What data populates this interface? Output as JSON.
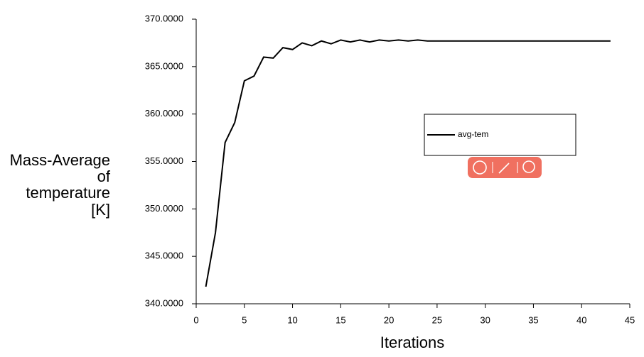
{
  "chart_data": {
    "type": "line",
    "xlabel": "Iterations",
    "ylabel": [
      "Mass-Average",
      "of",
      "temperature",
      "[K]"
    ],
    "x": [
      1,
      2,
      3,
      4,
      5,
      6,
      7,
      8,
      9,
      10,
      11,
      12,
      13,
      14,
      15,
      16,
      17,
      18,
      19,
      20,
      21,
      22,
      23,
      24,
      25,
      26,
      27,
      28,
      29,
      30,
      31,
      32,
      33,
      34,
      35,
      36,
      37,
      38,
      39,
      40,
      41,
      42,
      43
    ],
    "series": [
      {
        "name": "avg-tem",
        "color": "#000000",
        "values": [
          341.8,
          347.5,
          357.0,
          359.1,
          363.5,
          364.0,
          366.0,
          365.9,
          367.0,
          366.8,
          367.5,
          367.2,
          367.7,
          367.4,
          367.8,
          367.6,
          367.8,
          367.6,
          367.8,
          367.7,
          367.8,
          367.7,
          367.8,
          367.7,
          367.7,
          367.7,
          367.7,
          367.7,
          367.7,
          367.7,
          367.7,
          367.7,
          367.7,
          367.7,
          367.7,
          367.7,
          367.7,
          367.7,
          367.7,
          367.7,
          367.7,
          367.7,
          367.7
        ]
      }
    ],
    "xlim": [
      0,
      45
    ],
    "xticks": [
      0,
      5,
      10,
      15,
      20,
      25,
      30,
      35,
      40,
      45
    ],
    "ylim": [
      340,
      370
    ],
    "yticks": [
      {
        "value": 340,
        "label": "340.0000"
      },
      {
        "value": 345,
        "label": "345.0000"
      },
      {
        "value": 350,
        "label": "350.0000"
      },
      {
        "value": 355,
        "label": "355.0000"
      },
      {
        "value": 360,
        "label": "360.0000"
      },
      {
        "value": 365,
        "label": "365.0000"
      },
      {
        "value": 370,
        "label": "370.0000"
      }
    ]
  }
}
